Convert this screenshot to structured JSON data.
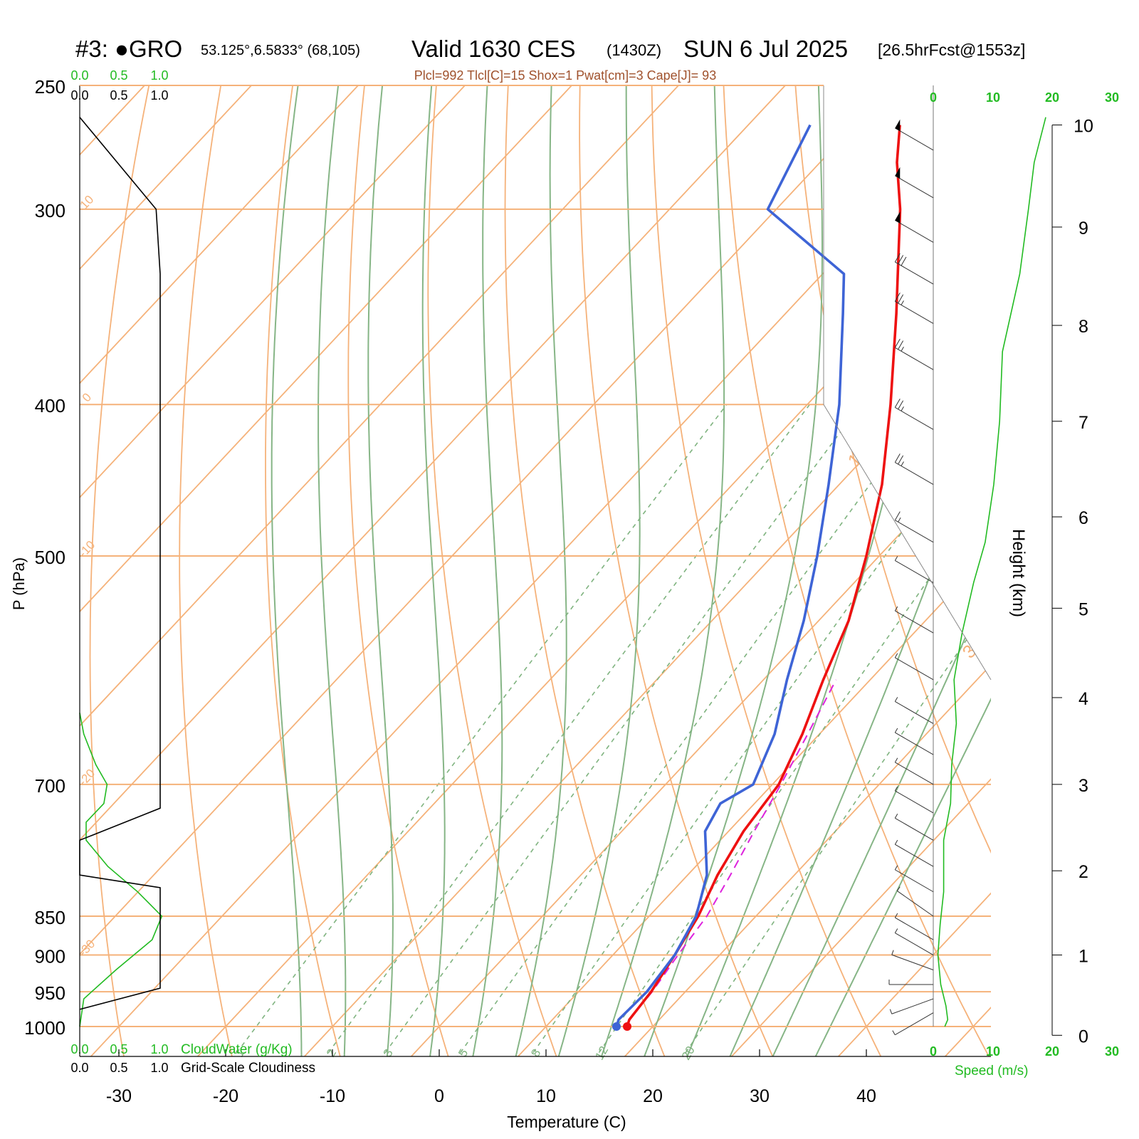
{
  "header": {
    "prefix": "#3: ●GRO",
    "location": "53.125°,6.5833° (68,105)",
    "valid": "Valid 1630 CES",
    "utc": "(1430Z)",
    "date": "SUN 6 Jul 2025",
    "forecast": "[26.5hrFcst@1553z]",
    "indices": "Plcl=992 Tlcl[C]=15 Shox=1 Pwat[cm]=3 Cape[J]= 93"
  },
  "colors": {
    "temperature": "#ee1111",
    "dewpoint": "#3e64d6",
    "parcel": "#dd22dd",
    "isotherm": "#f5b27a",
    "dry_adiabat": "#f5b27a",
    "moist_adiabat": "#86b586",
    "mixing_ratio": "#7fb37f",
    "cloudwater": "#22bb22",
    "cloudiness": "#000000",
    "wind_speed": "#22bb22",
    "label_brown": "#a0522d"
  },
  "chart_data": {
    "type": "skew-t",
    "xlabel": "Temperature (C)",
    "ylabel": "P (hPa)",
    "xlim": [
      -34,
      46
    ],
    "ylim": [
      1050,
      250
    ],
    "x_ticks": [
      "-30",
      "-20",
      "-10",
      "0",
      "10",
      "20",
      "30",
      "40"
    ],
    "pressure_ticks": [
      "250",
      "300",
      "400",
      "500",
      "700",
      "850",
      "900",
      "950",
      "1000"
    ],
    "pressure_levels": [
      250,
      300,
      400,
      500,
      700,
      850,
      900,
      950,
      1000
    ],
    "isotherm_labels": [
      "10",
      "0",
      "-10",
      "-20",
      "-30",
      "0",
      "10",
      "20",
      "30"
    ],
    "mixing_ratio_labels": [
      "1",
      "2",
      "3",
      "5",
      "8",
      "12",
      "20"
    ],
    "temperature_profile": [
      {
        "p": 1000,
        "t": 17.6
      },
      {
        "p": 990,
        "t": 17.2
      },
      {
        "p": 950,
        "t": 16.8
      },
      {
        "p": 900,
        "t": 15.8
      },
      {
        "p": 850,
        "t": 14.6
      },
      {
        "p": 800,
        "t": 12.8
      },
      {
        "p": 750,
        "t": 11.4
      },
      {
        "p": 700,
        "t": 10.6
      },
      {
        "p": 650,
        "t": 8.4
      },
      {
        "p": 600,
        "t": 5.6
      },
      {
        "p": 550,
        "t": 2.8
      },
      {
        "p": 500,
        "t": -1.2
      },
      {
        "p": 450,
        "t": -6.0
      },
      {
        "p": 400,
        "t": -12.2
      },
      {
        "p": 350,
        "t": -19.6
      },
      {
        "p": 300,
        "t": -28.4
      },
      {
        "p": 280,
        "t": -32.8
      },
      {
        "p": 265,
        "t": -35.8
      }
    ],
    "dewpoint_profile": [
      {
        "p": 1000,
        "t": 16.6
      },
      {
        "p": 990,
        "t": 16.2
      },
      {
        "p": 950,
        "t": 16.4
      },
      {
        "p": 900,
        "t": 15.8
      },
      {
        "p": 850,
        "t": 14.4
      },
      {
        "p": 800,
        "t": 11.8
      },
      {
        "p": 750,
        "t": 7.8
      },
      {
        "p": 720,
        "t": 6.8
      },
      {
        "p": 700,
        "t": 8.2
      },
      {
        "p": 650,
        "t": 5.8
      },
      {
        "p": 600,
        "t": 2.2
      },
      {
        "p": 550,
        "t": -1.4
      },
      {
        "p": 500,
        "t": -5.8
      },
      {
        "p": 450,
        "t": -11.0
      },
      {
        "p": 400,
        "t": -17.0
      },
      {
        "p": 350,
        "t": -24.6
      },
      {
        "p": 330,
        "t": -28.0
      },
      {
        "p": 300,
        "t": -40.8
      },
      {
        "p": 265,
        "t": -44.2
      }
    ],
    "parcel_profile": [
      {
        "p": 990,
        "t": 17.2
      },
      {
        "p": 950,
        "t": 16.9
      },
      {
        "p": 900,
        "t": 16.1
      },
      {
        "p": 850,
        "t": 15.4
      },
      {
        "p": 800,
        "t": 14.0
      },
      {
        "p": 750,
        "t": 12.4
      },
      {
        "p": 700,
        "t": 10.8
      },
      {
        "p": 650,
        "t": 8.9
      },
      {
        "p": 600,
        "t": 6.8
      }
    ],
    "height_axis": {
      "label": "Height (km)",
      "ticks": [
        "0",
        "1",
        "2",
        "3",
        "4",
        "5",
        "6",
        "7",
        "8",
        "9",
        "10"
      ],
      "pressures": [
        1013,
        900,
        795,
        700,
        616,
        540,
        472,
        410,
        356,
        308,
        265
      ]
    },
    "wind_speed_axis": {
      "label": "Speed (m/s)",
      "ticks": [
        "0",
        "10",
        "20",
        "30"
      ],
      "xlim": [
        0,
        30
      ]
    },
    "wind_speed_profile": [
      {
        "p": 1000,
        "v": 2.0
      },
      {
        "p": 990,
        "v": 2.5
      },
      {
        "p": 970,
        "v": 2.2
      },
      {
        "p": 940,
        "v": 1.3
      },
      {
        "p": 900,
        "v": 0.8
      },
      {
        "p": 860,
        "v": 1.2
      },
      {
        "p": 820,
        "v": 1.8
      },
      {
        "p": 760,
        "v": 1.8
      },
      {
        "p": 720,
        "v": 3.0
      },
      {
        "p": 680,
        "v": 3.2
      },
      {
        "p": 640,
        "v": 4.0
      },
      {
        "p": 600,
        "v": 3.6
      },
      {
        "p": 560,
        "v": 5.0
      },
      {
        "p": 520,
        "v": 7.0
      },
      {
        "p": 490,
        "v": 9.0
      },
      {
        "p": 450,
        "v": 10.5
      },
      {
        "p": 410,
        "v": 11.5
      },
      {
        "p": 370,
        "v": 12.0
      },
      {
        "p": 330,
        "v": 15.0
      },
      {
        "p": 300,
        "v": 16.5
      },
      {
        "p": 280,
        "v": 17.5
      },
      {
        "p": 262,
        "v": 19.5
      }
    ],
    "cloud_axis": {
      "ticks": [
        "0.0",
        "0.5",
        "1.0"
      ],
      "cloudwater_label": "CloudWater (g/Kg)",
      "cloudiness_label": "Grid-Scale Cloudiness"
    },
    "cloudwater_profile": [
      {
        "p": 1000,
        "v": 0.0
      },
      {
        "p": 960,
        "v": 0.05
      },
      {
        "p": 920,
        "v": 0.45
      },
      {
        "p": 880,
        "v": 0.9
      },
      {
        "p": 850,
        "v": 1.02
      },
      {
        "p": 820,
        "v": 0.72
      },
      {
        "p": 790,
        "v": 0.35
      },
      {
        "p": 760,
        "v": 0.08
      },
      {
        "p": 740,
        "v": 0.08
      },
      {
        "p": 720,
        "v": 0.3
      },
      {
        "p": 700,
        "v": 0.34
      },
      {
        "p": 680,
        "v": 0.2
      },
      {
        "p": 650,
        "v": 0.05
      },
      {
        "p": 630,
        "v": 0.0
      }
    ],
    "cloudiness_profile": [
      {
        "p": 975,
        "v": 0.0
      },
      {
        "p": 945,
        "v": 1.0
      },
      {
        "p": 815,
        "v": 1.0
      },
      {
        "p": 800,
        "v": 0.0
      },
      {
        "p": 760,
        "v": 0.0
      },
      {
        "p": 725,
        "v": 1.0
      },
      {
        "p": 330,
        "v": 1.0
      },
      {
        "p": 300,
        "v": 0.95
      },
      {
        "p": 262,
        "v": 0.0
      }
    ],
    "wind_barbs": [
      {
        "p": 980,
        "dir": 240,
        "v": 2.5
      },
      {
        "p": 960,
        "dir": 250,
        "v": 2.5
      },
      {
        "p": 940,
        "dir": 270,
        "v": 2.5
      },
      {
        "p": 920,
        "dir": 290,
        "v": 2.5
      },
      {
        "p": 900,
        "dir": 300,
        "v": 2.5
      },
      {
        "p": 880,
        "dir": 300,
        "v": 2.5
      },
      {
        "p": 850,
        "dir": 305,
        "v": 2.5
      },
      {
        "p": 820,
        "dir": 300,
        "v": 2.5
      },
      {
        "p": 790,
        "dir": 300,
        "v": 2.5
      },
      {
        "p": 760,
        "dir": 300,
        "v": 2.5
      },
      {
        "p": 730,
        "dir": 300,
        "v": 2.5
      },
      {
        "p": 700,
        "dir": 300,
        "v": 2.5
      },
      {
        "p": 670,
        "dir": 300,
        "v": 2.5
      },
      {
        "p": 640,
        "dir": 300,
        "v": 2.5
      },
      {
        "p": 600,
        "dir": 300,
        "v": 2.5
      },
      {
        "p": 560,
        "dir": 300,
        "v": 2.5
      },
      {
        "p": 520,
        "dir": 300,
        "v": 2.5
      },
      {
        "p": 490,
        "dir": 300,
        "v": 7.5
      },
      {
        "p": 450,
        "dir": 300,
        "v": 12.5
      },
      {
        "p": 415,
        "dir": 300,
        "v": 12.5
      },
      {
        "p": 380,
        "dir": 300,
        "v": 12.5
      },
      {
        "p": 355,
        "dir": 300,
        "v": 12.5
      },
      {
        "p": 335,
        "dir": 300,
        "v": 15
      },
      {
        "p": 315,
        "dir": 300,
        "v": 25
      },
      {
        "p": 295,
        "dir": 300,
        "v": 25
      },
      {
        "p": 275,
        "dir": 300,
        "v": 25
      }
    ]
  }
}
